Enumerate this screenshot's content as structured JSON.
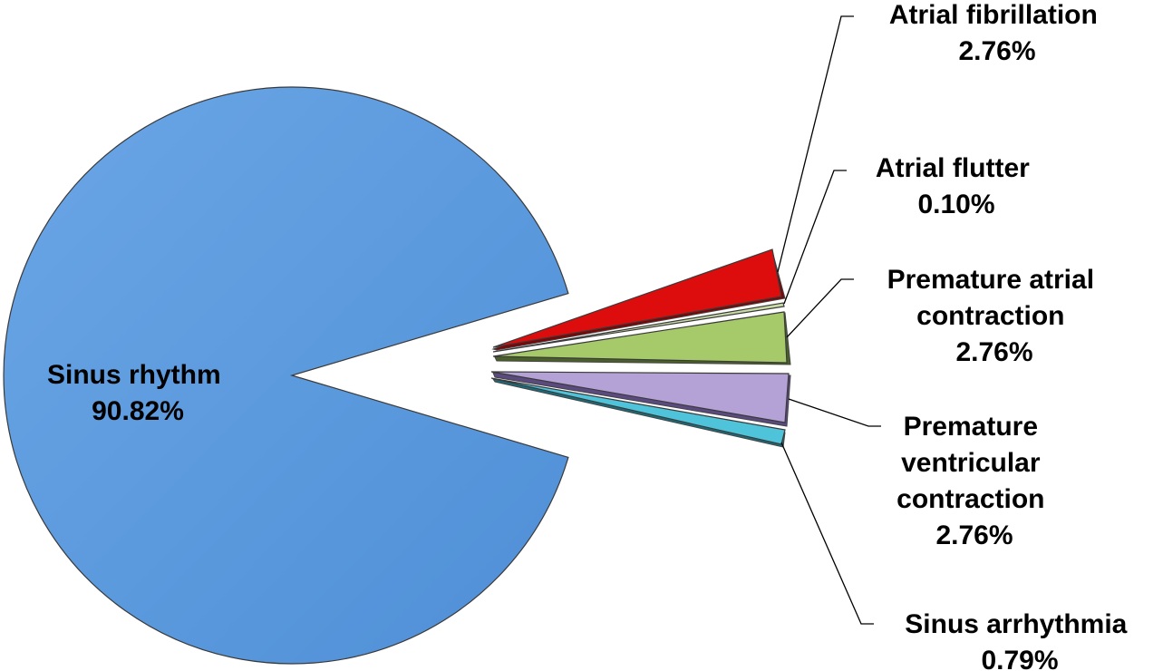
{
  "chart_data": {
    "type": "pie",
    "exploded": true,
    "style": "3d-beveled",
    "slices": [
      {
        "name": "Atrial fibrillation",
        "value": 2.76,
        "label": "2.76%",
        "color": "#dd0d0d",
        "edge_color": "#7a0606"
      },
      {
        "name": "Atrial flutter",
        "value": 0.1,
        "label": "0.10%",
        "color": "#a6c96a",
        "edge_color": "#4a5f2a"
      },
      {
        "name": "Premature atrial contraction",
        "value": 2.76,
        "label": "2.76%",
        "color": "#a6c96a",
        "edge_color": "#4a5f2a"
      },
      {
        "name": "Premature ventricular contraction",
        "value": 2.76,
        "label": "2.76%",
        "color": "#b4a1d6",
        "edge_color": "#5a4a80"
      },
      {
        "name": "Sinus arrhythmia",
        "value": 0.79,
        "label": "0.79%",
        "color": "#4fc3d9",
        "edge_color": "#1b6b7a"
      },
      {
        "name": "Sinus rhythm",
        "value": 90.82,
        "label": "90.82%",
        "color": "#5b9be0",
        "edge_color": "#2d5f9a"
      }
    ],
    "labels": {
      "atrial_fibrillation": {
        "line1": "Atrial fibrillation",
        "line2": "2.76%"
      },
      "atrial_flutter": {
        "line1": "Atrial flutter",
        "line2": "0.10%"
      },
      "premature_atrial": {
        "line1": "Premature atrial",
        "line2": "contraction",
        "line3": "2.76%"
      },
      "premature_ventricular": {
        "line1": "Premature",
        "line2": "ventricular",
        "line3": "contraction",
        "line4": "2.76%"
      },
      "sinus_arrhythmia": {
        "line1": "Sinus arrhythmia",
        "line2": "0.79%"
      },
      "sinus_rhythm": {
        "line1": "Sinus rhythm",
        "line2": "90.82%"
      }
    }
  }
}
